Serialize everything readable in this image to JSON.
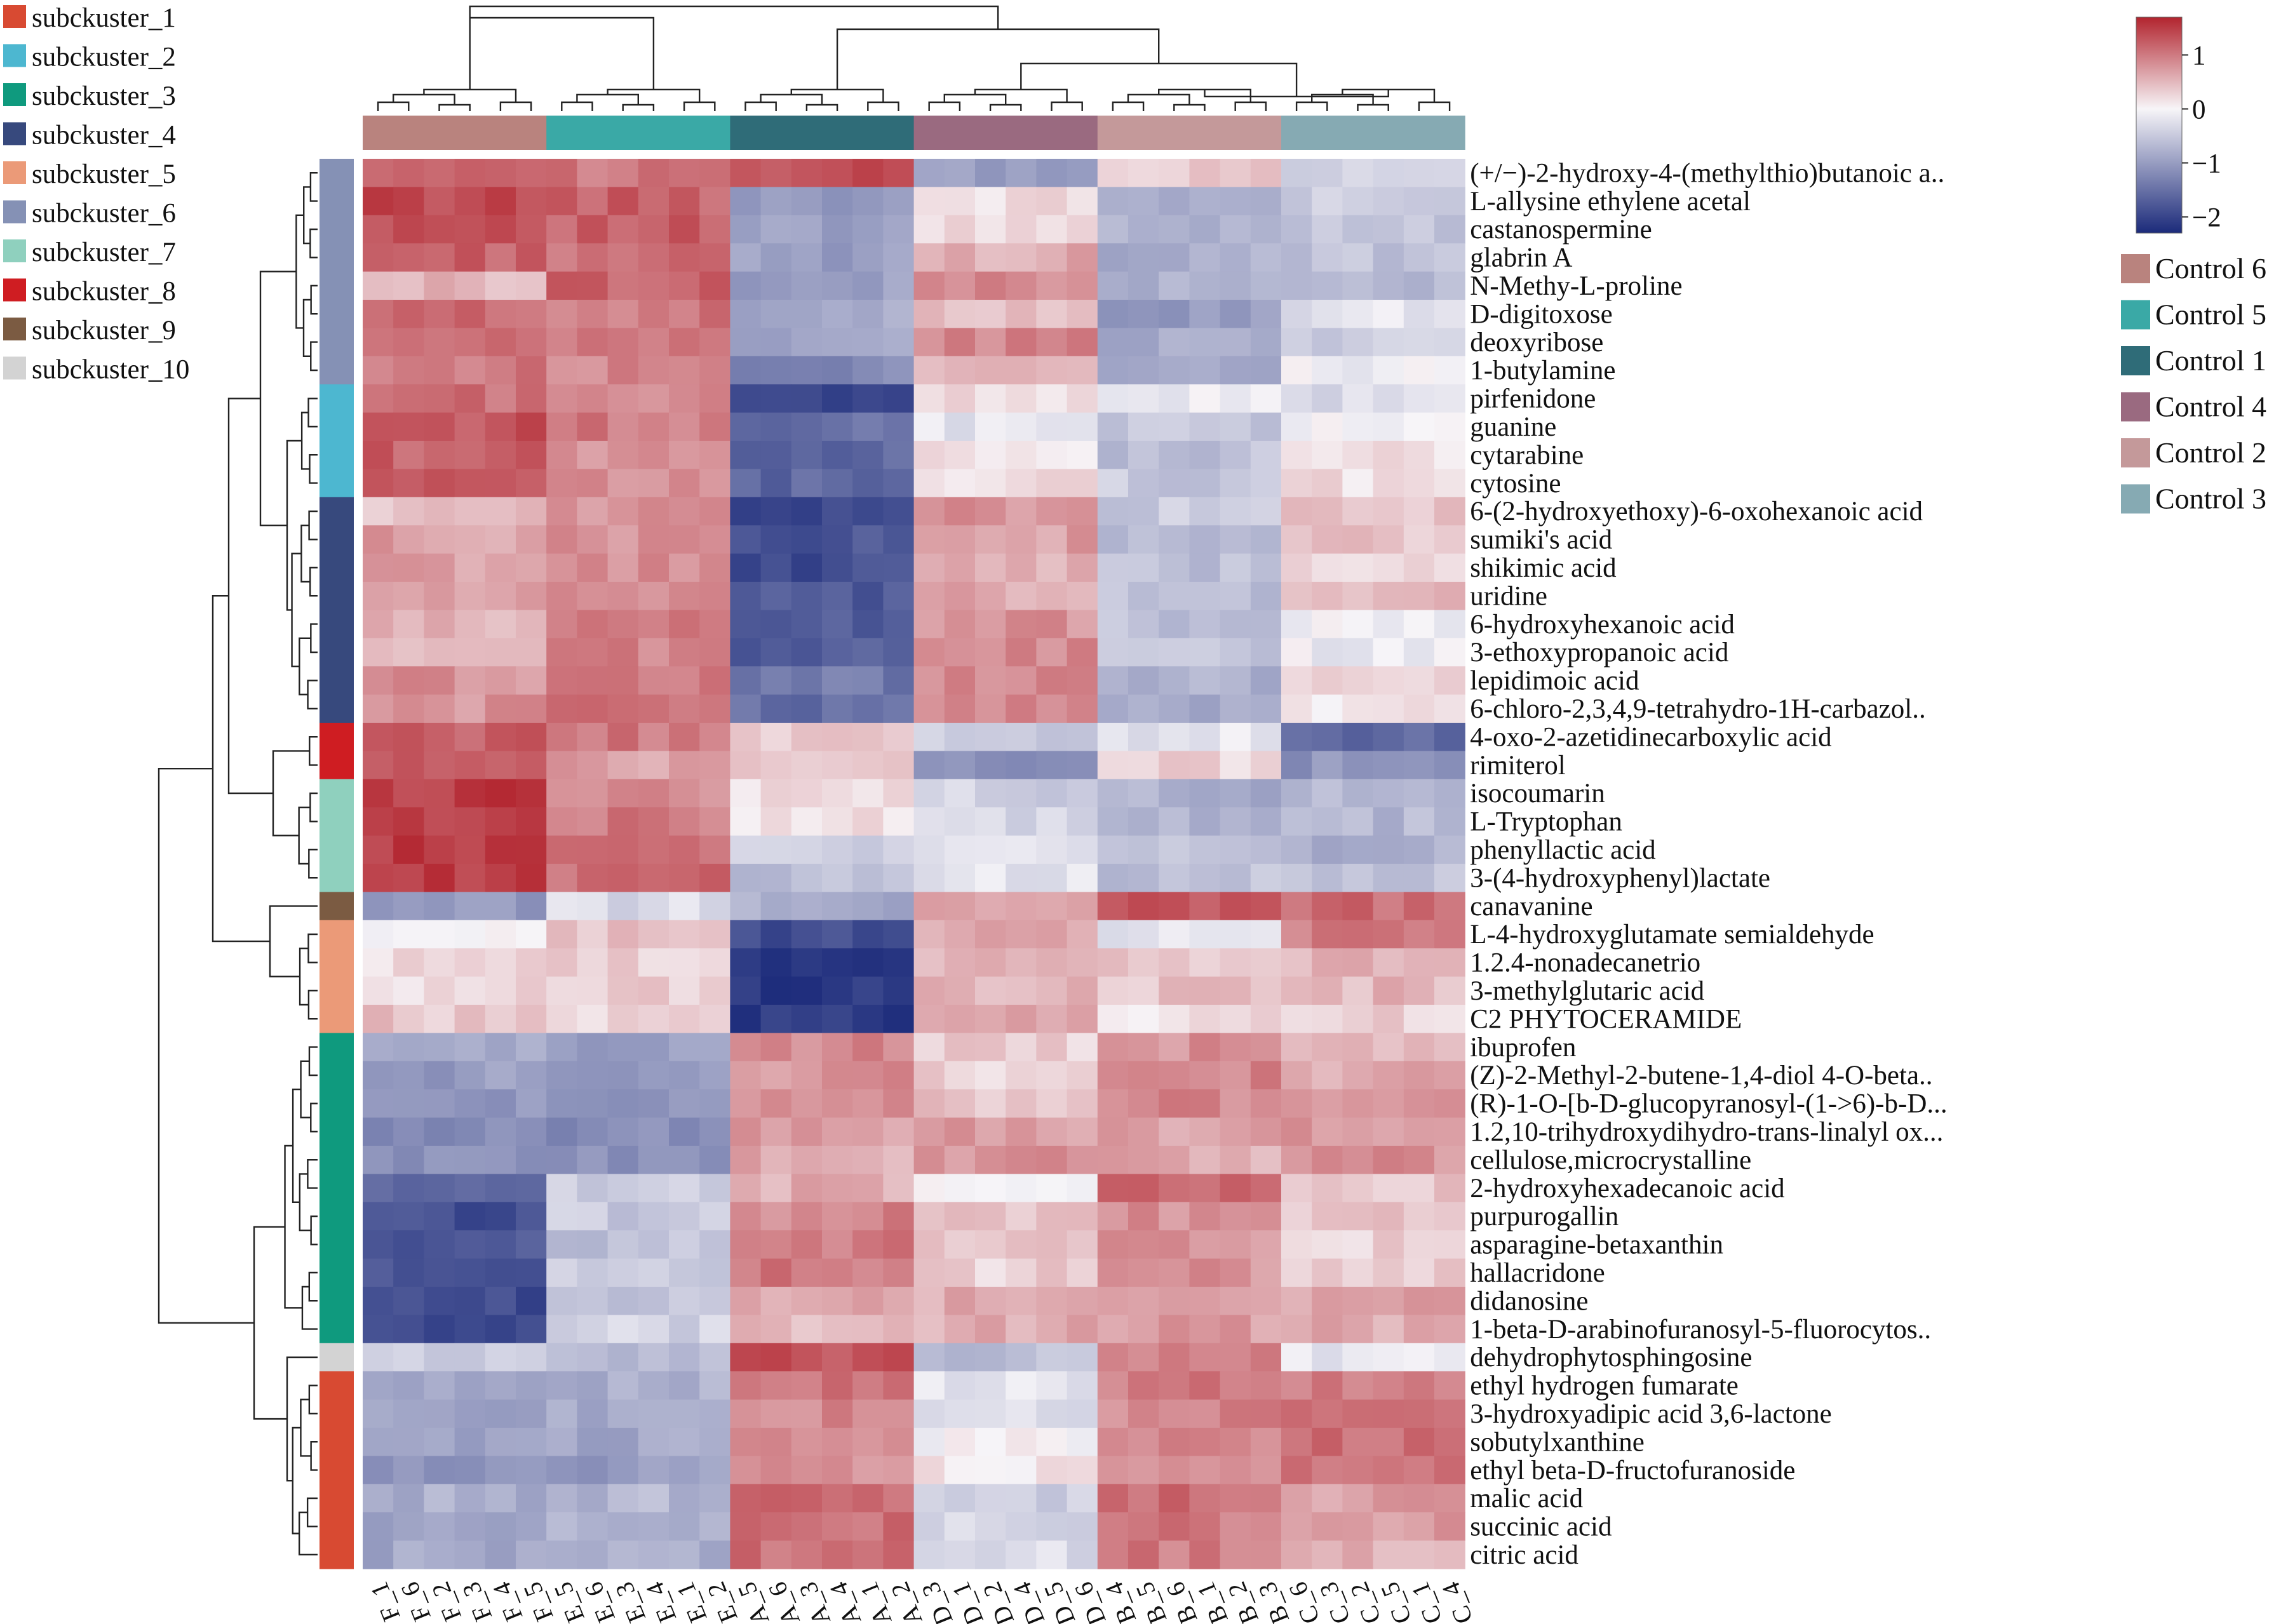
{
  "chart_data": {
    "type": "heatmap",
    "title": "",
    "xlabel": "",
    "ylabel": "",
    "color_scale": {
      "min": -2.3,
      "max": 1.7,
      "ticks": [
        1,
        0,
        -1,
        -2
      ],
      "tick_labels": [
        "1",
        "0",
        "−1",
        "−2"
      ],
      "low_color": "#1b2a7a",
      "mid_color": "#f7f5f8",
      "high_color": "#b2242e"
    },
    "group_legend": [
      {
        "label": "Control 6",
        "color": "#b9837e"
      },
      {
        "label": "Control 5",
        "color": "#3aa9a6"
      },
      {
        "label": "Control 1",
        "color": "#2f6c78"
      },
      {
        "label": "Control 4",
        "color": "#9a6a80"
      },
      {
        "label": "Control 2",
        "color": "#c4999a"
      },
      {
        "label": "Control 3",
        "color": "#86aab3"
      }
    ],
    "cluster_legend": [
      {
        "label": "subckuster_1",
        "color": "#d84a32"
      },
      {
        "label": "subckuster_2",
        "color": "#4db7d0"
      },
      {
        "label": "subckuster_3",
        "color": "#0f9a7e"
      },
      {
        "label": "subckuster_4",
        "color": "#37497d"
      },
      {
        "label": "subckuster_5",
        "color": "#eb9a78"
      },
      {
        "label": "subckuster_6",
        "color": "#8591b5"
      },
      {
        "label": "subckuster_7",
        "color": "#8fd0be"
      },
      {
        "label": "subckuster_8",
        "color": "#cf1d22"
      },
      {
        "label": "subckuster_9",
        "color": "#7b5b42"
      },
      {
        "label": "subckuster_10",
        "color": "#d3d3d3"
      }
    ],
    "columns": [
      "F_1",
      "F_6",
      "F_2",
      "F_3",
      "F_4",
      "F_5",
      "E_5",
      "E_6",
      "E_3",
      "E_4",
      "E_1",
      "E_2",
      "A_5",
      "A_6",
      "A_3",
      "A_4",
      "A_1",
      "A_2",
      "D_3",
      "D_1",
      "D_2",
      "D_4",
      "D_5",
      "D_6",
      "B_4",
      "B_5",
      "B_6",
      "B_1",
      "B_2",
      "B_3",
      "C_6",
      "C_3",
      "C_2",
      "C_5",
      "C_1",
      "C_4"
    ],
    "column_groups": [
      {
        "label": "Control 6",
        "columns": 6
      },
      {
        "label": "Control 5",
        "columns": 6
      },
      {
        "label": "Control 1",
        "columns": 6
      },
      {
        "label": "Control 4",
        "columns": 6
      },
      {
        "label": "Control 2",
        "columns": 6
      },
      {
        "label": "Control 3",
        "columns": 6
      }
    ],
    "rows": [
      {
        "name": "(+/−)-2-hydroxy-4-(methylthio)butanoic a..",
        "cluster": 6,
        "values": [
          1.3,
          1.0,
          1.3,
          -1.0,
          0.3,
          -0.4
        ]
      },
      {
        "name": "L-allysine ethylene acetal",
        "cluster": 6,
        "values": [
          1.4,
          1.2,
          -1.0,
          0.2,
          -0.8,
          -0.5
        ]
      },
      {
        "name": "castanospermine",
        "cluster": 6,
        "values": [
          1.4,
          1.2,
          -1.0,
          0.2,
          -0.8,
          -0.5
        ]
      },
      {
        "name": "glabrin A",
        "cluster": 6,
        "values": [
          1.2,
          1.1,
          -1.0,
          0.6,
          -0.8,
          -0.6
        ]
      },
      {
        "name": "N-Methy-L-proline",
        "cluster": 6,
        "values": [
          0.5,
          1.2,
          -1.0,
          0.9,
          -0.8,
          -0.7
        ]
      },
      {
        "name": "D-digitoxose",
        "cluster": 6,
        "values": [
          1.1,
          1.0,
          -0.9,
          0.5,
          -1.0,
          -0.2
        ]
      },
      {
        "name": "deoxyribose",
        "cluster": 6,
        "values": [
          1.0,
          1.0,
          -0.9,
          0.9,
          -0.8,
          -0.4
        ]
      },
      {
        "name": "1-butylamine",
        "cluster": 6,
        "values": [
          1.0,
          0.9,
          -1.2,
          0.6,
          -0.8,
          -0.1
        ]
      },
      {
        "name": "pirfenidone",
        "cluster": 2,
        "values": [
          1.1,
          0.8,
          -1.9,
          0.2,
          -0.1,
          -0.3
        ]
      },
      {
        "name": "guanine",
        "cluster": 2,
        "values": [
          1.3,
          1.0,
          -1.5,
          -0.2,
          -0.5,
          -0.1
        ]
      },
      {
        "name": "cytarabine",
        "cluster": 2,
        "values": [
          1.2,
          0.8,
          -1.6,
          0.2,
          -0.6,
          0.2
        ]
      },
      {
        "name": "cytosine",
        "cluster": 2,
        "values": [
          1.2,
          0.8,
          -1.6,
          0.2,
          -0.5,
          0.2
        ]
      },
      {
        "name": "6-(2-hydroxyethoxy)-6-oxohexanoic acid",
        "cluster": 4,
        "values": [
          0.4,
          0.8,
          -1.9,
          0.8,
          -0.5,
          0.4
        ]
      },
      {
        "name": "sumiki's acid",
        "cluster": 4,
        "values": [
          0.7,
          0.8,
          -1.8,
          0.7,
          -0.7,
          0.4
        ]
      },
      {
        "name": "shikimic acid",
        "cluster": 4,
        "values": [
          0.7,
          0.8,
          -1.9,
          0.6,
          -0.6,
          0.3
        ]
      },
      {
        "name": "uridine",
        "cluster": 4,
        "values": [
          0.7,
          0.8,
          -1.8,
          0.6,
          -0.6,
          0.5
        ]
      },
      {
        "name": "6-hydroxyhexanoic acid",
        "cluster": 4,
        "values": [
          0.5,
          1.0,
          -1.7,
          0.8,
          -0.6,
          -0.1
        ]
      },
      {
        "name": "3-ethoxypropanoic acid",
        "cluster": 4,
        "values": [
          0.5,
          0.9,
          -1.7,
          0.9,
          -0.6,
          -0.1
        ]
      },
      {
        "name": "lepidimoic acid",
        "cluster": 4,
        "values": [
          0.8,
          1.0,
          -1.4,
          0.9,
          -0.8,
          0.2
        ]
      },
      {
        "name": "6-chloro-2,3,4,9-tetrahydro-1H-carbazol..",
        "cluster": 4,
        "values": [
          0.8,
          1.0,
          -1.5,
          0.9,
          -0.8,
          0.1
        ]
      },
      {
        "name": "4-oxo-2-azetidinecarboxylic acid",
        "cluster": 8,
        "values": [
          1.2,
          1.0,
          0.4,
          -0.5,
          -0.2,
          -1.6
        ]
      },
      {
        "name": "rimiterol",
        "cluster": 8,
        "values": [
          1.2,
          0.7,
          0.3,
          -1.2,
          0.3,
          -1.1
        ]
      },
      {
        "name": "isocoumarin",
        "cluster": 7,
        "values": [
          1.5,
          0.9,
          0.2,
          -0.4,
          -0.8,
          -0.7
        ]
      },
      {
        "name": "L-Tryptophan",
        "cluster": 7,
        "values": [
          1.5,
          1.0,
          0.2,
          -0.4,
          -0.8,
          -0.7
        ]
      },
      {
        "name": "phenyllactic acid",
        "cluster": 7,
        "values": [
          1.5,
          1.1,
          -0.4,
          -0.2,
          -0.6,
          -0.8
        ]
      },
      {
        "name": "3-(4-hydroxyphenyl)lactate",
        "cluster": 7,
        "values": [
          1.5,
          1.1,
          -0.6,
          -0.2,
          -0.6,
          -0.6
        ]
      },
      {
        "name": "canavanine",
        "cluster": 9,
        "values": [
          -1.1,
          -0.3,
          -0.8,
          0.6,
          1.3,
          1.1
        ]
      },
      {
        "name": "L-4-hydroxyglutamate semialdehyde",
        "cluster": 5,
        "values": [
          0.1,
          0.4,
          -1.9,
          0.6,
          -0.2,
          1.0
        ]
      },
      {
        "name": "1.2.4-nonadecanetrio",
        "cluster": 5,
        "values": [
          0.2,
          0.3,
          -2.2,
          0.5,
          0.4,
          0.5
        ]
      },
      {
        "name": "3-methylglutaric acid",
        "cluster": 5,
        "values": [
          0.2,
          0.3,
          -2.1,
          0.5,
          0.4,
          0.5
        ]
      },
      {
        "name": "C2 PHYTOCERAMIDE",
        "cluster": 5,
        "values": [
          0.4,
          0.3,
          -2.1,
          0.6,
          0.2,
          0.3
        ]
      },
      {
        "name": "ibuprofen",
        "cluster": 3,
        "values": [
          -0.9,
          -1.0,
          0.9,
          0.3,
          0.8,
          0.5
        ]
      },
      {
        "name": "(Z)-2-Methyl-2-butene-1,4-diol 4-O-beta..",
        "cluster": 3,
        "values": [
          -1.0,
          -1.1,
          0.8,
          0.3,
          0.9,
          0.6
        ]
      },
      {
        "name": "(R)-1-O-[b-D-glucopyranosyl-(1->6)-b-D...",
        "cluster": 3,
        "values": [
          -1.0,
          -1.1,
          0.8,
          0.4,
          0.9,
          0.7
        ]
      },
      {
        "name": "1.2,10-trihydroxydihydro-trans-linalyl ox...",
        "cluster": 3,
        "values": [
          -1.2,
          -1.2,
          0.7,
          0.7,
          0.7,
          0.8
        ]
      },
      {
        "name": "cellulose,microcrystalline",
        "cluster": 3,
        "values": [
          -1.1,
          -1.1,
          0.6,
          0.8,
          0.6,
          0.8
        ]
      },
      {
        "name": "2-hydroxyhexadecanoic acid",
        "cluster": 3,
        "values": [
          -1.7,
          -0.5,
          0.6,
          0.1,
          1.1,
          0.4
        ]
      },
      {
        "name": "purpurogallin",
        "cluster": 3,
        "values": [
          -1.9,
          -0.5,
          0.9,
          0.4,
          0.8,
          0.4
        ]
      },
      {
        "name": "asparagine-betaxanthin",
        "cluster": 3,
        "values": [
          -1.8,
          -0.6,
          1.0,
          0.4,
          0.8,
          0.3
        ]
      },
      {
        "name": "hallacridone",
        "cluster": 3,
        "values": [
          -1.8,
          -0.5,
          1.0,
          0.3,
          0.8,
          0.3
        ]
      },
      {
        "name": "didanosine",
        "cluster": 3,
        "values": [
          -1.9,
          -0.5,
          0.7,
          0.6,
          0.7,
          0.7
        ]
      },
      {
        "name": "1-beta-D-arabinofuranosyl-5-fluorocytos..",
        "cluster": 3,
        "values": [
          -2.0,
          -0.4,
          0.5,
          0.6,
          0.7,
          0.6
        ]
      },
      {
        "name": "dehydrophytosphingosine",
        "cluster": 10,
        "values": [
          -0.4,
          -0.7,
          1.3,
          -0.6,
          1.0,
          -0.2
        ]
      },
      {
        "name": "ethyl hydrogen fumarate",
        "cluster": 1,
        "values": [
          -0.8,
          -0.8,
          1.0,
          -0.2,
          1.0,
          1.0
        ]
      },
      {
        "name": "3-hydroxyadipic acid 3,6-lactone",
        "cluster": 1,
        "values": [
          -0.9,
          -0.9,
          0.9,
          -0.3,
          0.9,
          1.0
        ]
      },
      {
        "name": "sobutylxanthine",
        "cluster": 1,
        "values": [
          -1.0,
          -0.9,
          0.9,
          0.0,
          0.9,
          1.1
        ]
      },
      {
        "name": "ethyl beta-D-fructofuranoside",
        "cluster": 1,
        "values": [
          -1.1,
          -1.0,
          0.8,
          0.1,
          0.8,
          1.0
        ]
      },
      {
        "name": "malic acid",
        "cluster": 1,
        "values": [
          -0.8,
          -0.7,
          1.1,
          -0.4,
          1.1,
          0.7
        ]
      },
      {
        "name": "succinic acid",
        "cluster": 1,
        "values": [
          -0.9,
          -0.8,
          1.1,
          -0.3,
          1.0,
          0.7
        ]
      },
      {
        "name": "citric acid",
        "cluster": 1,
        "values": [
          -0.9,
          -0.8,
          1.1,
          -0.3,
          1.0,
          0.6
        ]
      }
    ]
  }
}
